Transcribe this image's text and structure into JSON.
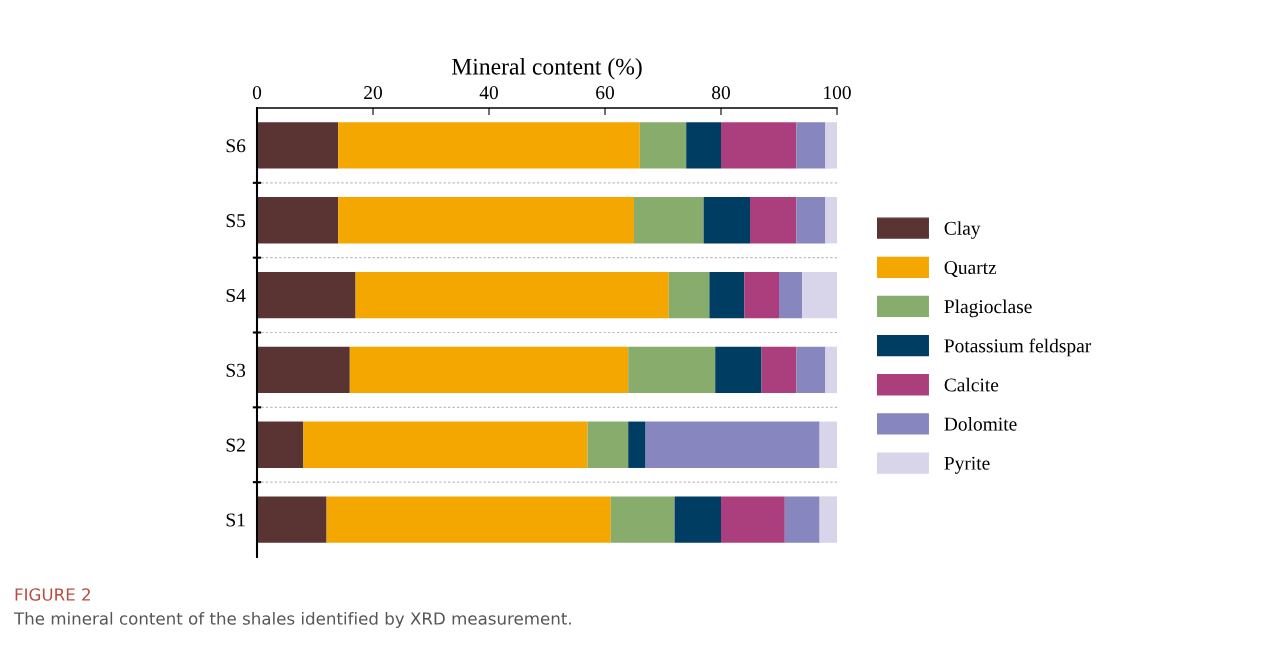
{
  "chart_data": {
    "type": "bar",
    "orientation": "horizontal",
    "stacked": true,
    "xlabel": "Mineral content (%)",
    "categories": [
      "S6",
      "S5",
      "S4",
      "S3",
      "S2",
      "S1"
    ],
    "series": [
      {
        "name": "Clay",
        "color": "#5a3433",
        "values": [
          14,
          14,
          17,
          16,
          8,
          12
        ]
      },
      {
        "name": "Quartz",
        "color": "#f4a700",
        "values": [
          52,
          51,
          54,
          48,
          49,
          49
        ]
      },
      {
        "name": "Plagioclase",
        "color": "#88ac6c",
        "values": [
          8,
          12,
          7,
          15,
          7,
          11
        ]
      },
      {
        "name": "Potassium feldspar",
        "color": "#003d63",
        "values": [
          6,
          8,
          6,
          8,
          3,
          8
        ]
      },
      {
        "name": "Calcite",
        "color": "#ab3f7e",
        "values": [
          13,
          8,
          6,
          6,
          0,
          11
        ]
      },
      {
        "name": "Dolomite",
        "color": "#8886bf",
        "values": [
          5,
          5,
          4,
          5,
          30,
          6
        ]
      },
      {
        "name": "Pyrite",
        "color": "#d8d4e9",
        "values": [
          2,
          2,
          6,
          2,
          3,
          3
        ]
      }
    ],
    "xlim": [
      0,
      100
    ],
    "xticks": [
      0,
      20,
      40,
      60,
      80,
      100
    ],
    "legend": "right",
    "annotations": [
      "FIGURE 2",
      "The mineral content of the shales identified by XRD measurement."
    ]
  }
}
